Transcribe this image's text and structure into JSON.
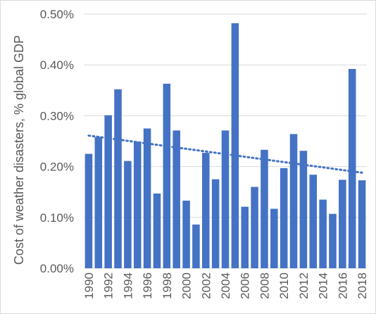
{
  "chart_data": {
    "type": "bar",
    "title": "",
    "xlabel": "",
    "ylabel": "Cost of weather disasters, % global GDP",
    "ylim": [
      0,
      0.5
    ],
    "y_ticks": [
      "0.00%",
      "0.10%",
      "0.20%",
      "0.30%",
      "0.40%",
      "0.50%"
    ],
    "y_tick_values": [
      0,
      0.1,
      0.2,
      0.3,
      0.4,
      0.5
    ],
    "x_tick_labels": [
      "1990",
      "1992",
      "1994",
      "1996",
      "1998",
      "2000",
      "2002",
      "2004",
      "2006",
      "2008",
      "2010",
      "2012",
      "2014",
      "2016",
      "2018"
    ],
    "categories": [
      1990,
      1991,
      1992,
      1993,
      1994,
      1995,
      1996,
      1997,
      1998,
      1999,
      2000,
      2001,
      2002,
      2003,
      2004,
      2005,
      2006,
      2007,
      2008,
      2009,
      2010,
      2011,
      2012,
      2013,
      2014,
      2015,
      2016,
      2017,
      2018
    ],
    "values": [
      0.225,
      0.258,
      0.301,
      0.352,
      0.211,
      0.249,
      0.275,
      0.147,
      0.363,
      0.271,
      0.133,
      0.086,
      0.227,
      0.175,
      0.271,
      0.482,
      0.121,
      0.16,
      0.233,
      0.117,
      0.197,
      0.264,
      0.231,
      0.184,
      0.135,
      0.107,
      0.174,
      0.392,
      0.173
    ],
    "trendline": {
      "type": "linear",
      "style": "dotted",
      "start": 0.261,
      "end": 0.188
    },
    "grid": true,
    "colors": {
      "bars": "#4472c4",
      "trend": "#4472c4",
      "grid": "#d9d9d9",
      "text": "#595959"
    }
  }
}
